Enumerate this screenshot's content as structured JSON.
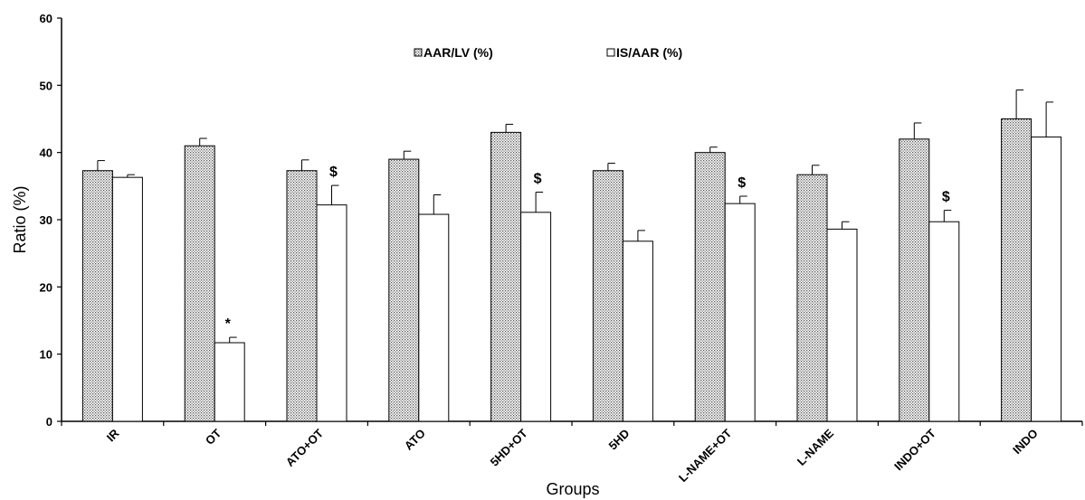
{
  "chart_data": {
    "type": "bar",
    "title": "",
    "xlabel": "Groups",
    "ylabel": "Ratio (%)",
    "ylim": [
      0,
      60
    ],
    "yticks": [
      0,
      10,
      20,
      30,
      40,
      50,
      60
    ],
    "grid": false,
    "legend_position": "top-center",
    "categories": [
      "IR",
      "OT",
      "ATO+OT",
      "ATO",
      "5HD+OT",
      "5HD",
      "L-NAME+OT",
      "L-NAME",
      "INDO+OT",
      "INDO"
    ],
    "series": [
      {
        "name": "AAR/LV (%)",
        "pattern": "dotted",
        "values": [
          37.3,
          41.0,
          37.3,
          39.0,
          43.0,
          37.3,
          40.0,
          36.7,
          42.0,
          45.0
        ],
        "errors": [
          1.5,
          1.1,
          1.6,
          1.2,
          1.2,
          1.1,
          0.8,
          1.4,
          2.4,
          4.3
        ]
      },
      {
        "name": "IS/AAR (%)",
        "pattern": "white",
        "values": [
          36.3,
          11.7,
          32.2,
          30.8,
          31.1,
          26.8,
          32.4,
          28.6,
          29.7,
          42.3
        ],
        "errors": [
          0.4,
          0.8,
          2.9,
          2.9,
          3.0,
          1.6,
          1.1,
          1.1,
          1.7,
          5.2
        ]
      }
    ],
    "annotations": [
      {
        "category": "OT",
        "series": 1,
        "text": "*"
      },
      {
        "category": "ATO+OT",
        "series": 1,
        "text": "$"
      },
      {
        "category": "5HD+OT",
        "series": 1,
        "text": "$"
      },
      {
        "category": "L-NAME+OT",
        "series": 1,
        "text": "$"
      },
      {
        "category": "INDO+OT",
        "series": 1,
        "text": "$"
      }
    ],
    "colors": {
      "axis": "#000000",
      "bar_fill": "#ffffff",
      "dot": "#555555"
    }
  }
}
